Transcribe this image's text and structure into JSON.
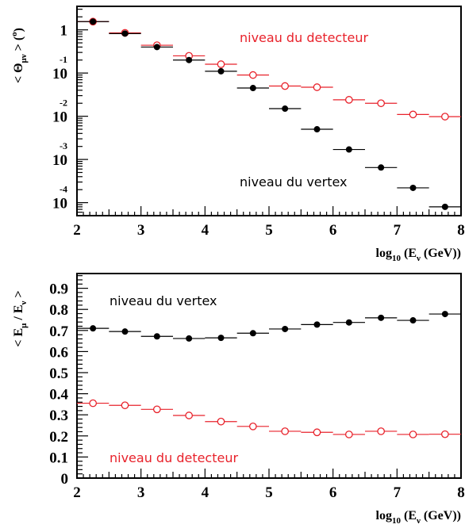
{
  "chart_data": [
    {
      "type": "scatter",
      "yscale": "log",
      "xlim": [
        2,
        8
      ],
      "ylim": [
        5e-05,
        3.5
      ],
      "x_ticks": [
        "2",
        "3",
        "4",
        "5",
        "6",
        "7",
        "8"
      ],
      "y_ticks": [
        {
          "value": 1,
          "mantissa": "1",
          "exponent": ""
        },
        {
          "value": 0.1,
          "mantissa": "10",
          "exponent": "-1"
        },
        {
          "value": 0.01,
          "mantissa": "10",
          "exponent": "-2"
        },
        {
          "value": 0.001,
          "mantissa": "10",
          "exponent": "-3"
        },
        {
          "value": 0.0001,
          "mantissa": "10",
          "exponent": "-4"
        }
      ],
      "ylabel": {
        "pre": "< Θ",
        "sub": "μν",
        "post": " > (",
        "sup": "o",
        "end": ")"
      },
      "xlabel": {
        "pre": "log",
        "sub1": "10",
        "mid": " (E",
        "sub2": "ν",
        "post": " (GeV))"
      },
      "bin_halfwidth": 0.25,
      "series": [
        {
          "name": "niveau du detecteur",
          "color": "#e8222b",
          "marker": "open-circle",
          "x": [
            2.25,
            2.75,
            3.25,
            3.75,
            4.25,
            4.75,
            5.25,
            5.75,
            6.25,
            6.75,
            7.25,
            7.75
          ],
          "y": [
            1.55,
            0.85,
            0.44,
            0.25,
            0.16,
            0.09,
            0.05,
            0.047,
            0.024,
            0.02,
            0.011,
            0.0098
          ]
        },
        {
          "name": "niveau du vertex",
          "color": "#000000",
          "marker": "filled-circle",
          "x": [
            2.25,
            2.75,
            3.25,
            3.75,
            4.25,
            4.75,
            5.25,
            5.75,
            6.25,
            6.75,
            7.25,
            7.75
          ],
          "y": [
            1.55,
            0.82,
            0.4,
            0.2,
            0.11,
            0.045,
            0.015,
            0.005,
            0.0017,
            0.00065,
            0.00022,
            8e-05
          ]
        }
      ]
    },
    {
      "type": "scatter",
      "xlim": [
        2,
        8
      ],
      "ylim": [
        0,
        0.97
      ],
      "x_ticks": [
        "2",
        "3",
        "4",
        "5",
        "6",
        "7",
        "8"
      ],
      "y_ticks": [
        "0",
        "0.1",
        "0.2",
        "0.3",
        "0.4",
        "0.5",
        "0.6",
        "0.7",
        "0.8",
        "0.9"
      ],
      "ylabel": {
        "pre": "< E",
        "sub1": "μ",
        "mid": " / E",
        "sub2": "ν",
        "post": " >"
      },
      "xlabel": {
        "pre": "log",
        "sub1": "10",
        "mid": " (E",
        "sub2": "ν",
        "post": " (GeV))"
      },
      "bin_halfwidth": 0.25,
      "series": [
        {
          "name": "niveau du vertex",
          "color": "#000000",
          "marker": "filled-circle",
          "x": [
            2.25,
            2.75,
            3.25,
            3.75,
            4.25,
            4.75,
            5.25,
            5.75,
            6.25,
            6.75,
            7.25,
            7.75
          ],
          "y": [
            0.71,
            0.695,
            0.672,
            0.662,
            0.665,
            0.687,
            0.707,
            0.728,
            0.738,
            0.76,
            0.748,
            0.778
          ]
        },
        {
          "name": "niveau du detecteur",
          "color": "#e8222b",
          "marker": "open-circle",
          "x": [
            2.25,
            2.75,
            3.25,
            3.75,
            4.25,
            4.75,
            5.25,
            5.75,
            6.25,
            6.75,
            7.25,
            7.75
          ],
          "y": [
            0.355,
            0.345,
            0.326,
            0.297,
            0.268,
            0.245,
            0.222,
            0.217,
            0.207,
            0.222,
            0.207,
            0.208
          ]
        }
      ]
    }
  ]
}
